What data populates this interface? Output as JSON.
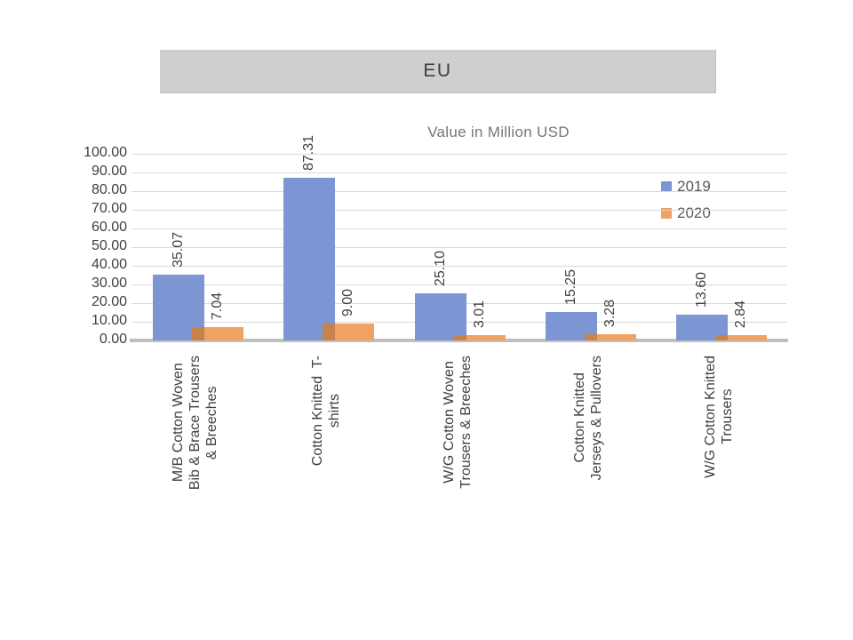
{
  "header": {
    "title": "EU"
  },
  "chart_data": {
    "type": "bar",
    "title": "EU",
    "subtitle": "Value in Million USD",
    "categories": [
      "M/B Cotton Woven\nBib & Brace Trousers\n& Breeches",
      "Cotton Knitted  T-\nshirts",
      "W/G Cotton Woven\nTrousers & Breeches",
      "Cotton Knitted\nJerseys & Pullovers",
      "W/G Cotton Knitted\nTrousers"
    ],
    "series": [
      {
        "name": "2019",
        "color": "#7C96D4",
        "values": [
          35.07,
          87.31,
          25.1,
          15.25,
          13.6
        ],
        "labels": [
          "35.07",
          "87.31",
          "25.10",
          "15.25",
          "13.60"
        ]
      },
      {
        "name": "2020",
        "color": "#F0A260",
        "values": [
          7.04,
          9.0,
          3.01,
          3.28,
          2.84
        ],
        "labels": [
          "7.04",
          "9.00",
          "3.01",
          "3.28",
          "2.84"
        ]
      }
    ],
    "overlap_color": "#C8824E",
    "ylim": [
      0,
      100
    ],
    "ytick_labels": [
      "100.00",
      "90.00",
      "80.00",
      "70.00",
      "60.00",
      "50.00",
      "40.00",
      "30.00",
      "20.00",
      "10.00",
      "0.00"
    ],
    "grid": true,
    "legend_position": "upper-right",
    "data_label_rotation": 90,
    "category_label_rotation": 90,
    "colors": {
      "title_bg": "#D0CECE",
      "title_text": "#3F3F3F",
      "subtitle_text": "#767676",
      "axis_text": "#3F3F3F",
      "legend_text": "#595959",
      "gridline": "#D9D9D9",
      "baseline": "#BFBFBF"
    }
  }
}
